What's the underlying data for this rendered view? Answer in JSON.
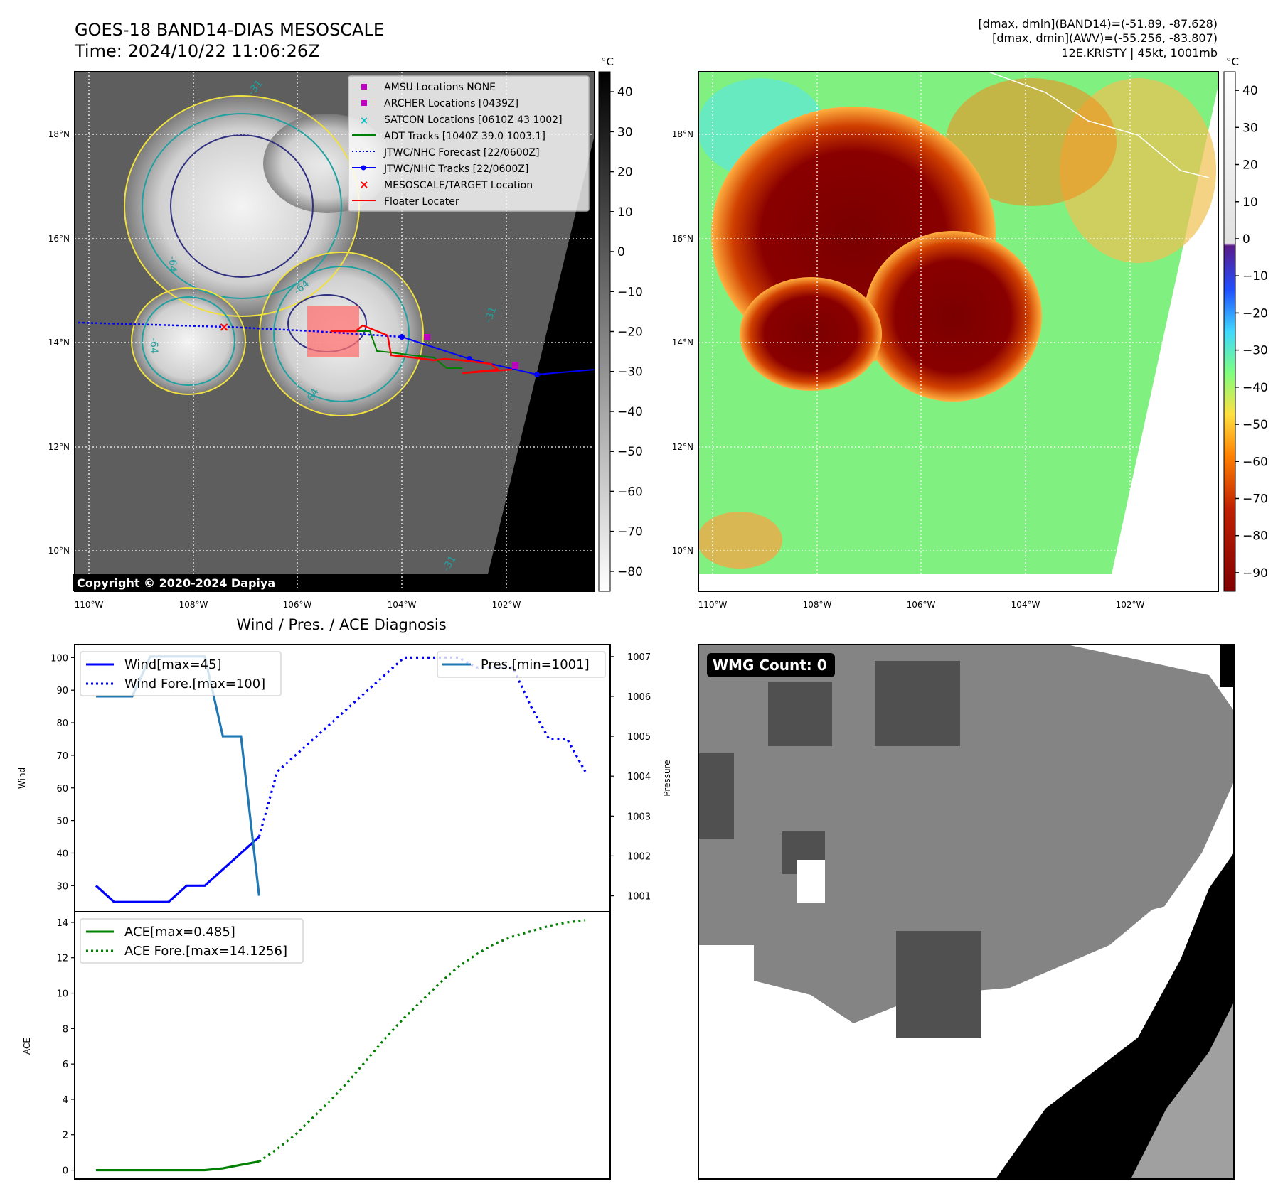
{
  "header": {
    "title_line1": "GOES-18 BAND14-DIAS MESOSCALE",
    "title_line2": "Time: 2024/10/22 11:06:26Z",
    "info_line1": "[dmax, dmin](BAND14)=(-51.89, -87.628)",
    "info_line2": "[dmax, dmin](AWV)=(-55.256, -83.807)",
    "info_line3": "12E.KRISTY | 45kt, 1001mb"
  },
  "copyright": "Copyright © 2020-2024 Dapiya",
  "map": {
    "lon_labels": [
      "110°W",
      "108°W",
      "106°W",
      "104°W",
      "102°W"
    ],
    "lat_labels": [
      "18°N",
      "16°N",
      "14°N",
      "12°N",
      "10°N"
    ],
    "colorbar_unit": "°C",
    "ir_colorbar_ticks": [
      "40",
      "30",
      "20",
      "10",
      "0",
      "−10",
      "−20",
      "−30",
      "−40",
      "−50",
      "−60",
      "−70",
      "−80"
    ],
    "wv_colorbar_ticks": [
      "40",
      "30",
      "20",
      "10",
      "0",
      "−10",
      "−20",
      "−30",
      "−40",
      "−50",
      "−60",
      "−70",
      "−80",
      "−90"
    ],
    "contour_labels": [
      "-31",
      "-64",
      "-64",
      "-64",
      "-31",
      "-31",
      "-64"
    ],
    "legend": [
      {
        "label": "AMSU Locations NONE",
        "color": "#c000c0",
        "marker": "square"
      },
      {
        "label": "ARCHER Locations [0439Z]",
        "color": "#c000c0",
        "marker": "square"
      },
      {
        "label": "SATCON Locations [0610Z 43 1002]",
        "color": "#00c0c0",
        "marker": "x"
      },
      {
        "label": "ADT Tracks [1040Z 39.0 1003.1]",
        "color": "#008000",
        "marker": "line"
      },
      {
        "label": "JTWC/NHC Forecast [22/0600Z]",
        "color": "#0000ff",
        "marker": "dotted"
      },
      {
        "label": "JTWC/NHC Tracks [22/0600Z]",
        "color": "#0000ff",
        "marker": "line-dot"
      },
      {
        "label": "MESOSCALE/TARGET Location",
        "color": "#ff0000",
        "marker": "x"
      },
      {
        "label": "Floater Locater",
        "color": "#ff0000",
        "marker": "line"
      }
    ]
  },
  "wmg": {
    "label": "WMG Count: 0"
  },
  "diagnosis": {
    "title": "Wind / Pres. / ACE Diagnosis",
    "wind_ylabel": "Wind",
    "pres_ylabel": "Pressure",
    "ace_ylabel": "ACE",
    "legend_wind": "Wind[max=45]",
    "legend_wind_fore": "Wind Fore.[max=100]",
    "legend_pres": "Pres.[min=1001]",
    "legend_ace": "ACE[max=0.485]",
    "legend_ace_fore": "ACE Fore.[max=14.1256]"
  },
  "chart_data": [
    {
      "type": "line",
      "title": "Wind / Pres. / ACE Diagnosis",
      "ylabel": "Wind",
      "ylim": [
        22,
        104
      ],
      "y_ticks": [
        30,
        40,
        50,
        60,
        70,
        80,
        90,
        100
      ],
      "series": [
        {
          "name": "Wind[max=45]",
          "axis": "wind",
          "style": "solid",
          "color": "#0000ff",
          "x": [
            0,
            1,
            2,
            3,
            4,
            5,
            6,
            7,
            8,
            9
          ],
          "y": [
            30,
            25,
            25,
            25,
            25,
            30,
            30,
            35,
            40,
            45
          ]
        },
        {
          "name": "Wind Fore.[max=100]",
          "axis": "wind",
          "style": "dotted",
          "color": "#0000ff",
          "x": [
            9,
            10,
            11,
            12,
            13,
            14,
            15,
            16,
            17,
            18,
            19,
            20,
            21,
            22,
            23,
            24,
            25,
            26,
            27
          ],
          "y": [
            45,
            65,
            70,
            75,
            80,
            85,
            90,
            95,
            100,
            100,
            100,
            100,
            97,
            97,
            97,
            85,
            75,
            75,
            65
          ]
        },
        {
          "name": "Pres.[min=1001]",
          "axis": "pressure",
          "style": "solid",
          "color": "#1f77b4",
          "x": [
            0,
            1,
            2,
            3,
            4,
            5,
            6,
            7,
            8,
            9
          ],
          "y": [
            1006,
            1006,
            1006,
            1007,
            1007,
            1007,
            1007,
            1005,
            1005,
            1001
          ]
        }
      ],
      "y2label": "Pressure",
      "y2lim": [
        1000.6,
        1007.3
      ],
      "y2_ticks": [
        1001,
        1002,
        1003,
        1004,
        1005,
        1006,
        1007
      ]
    },
    {
      "type": "line",
      "ylabel": "ACE",
      "ylim": [
        -0.5,
        14.6
      ],
      "y_ticks": [
        0,
        2,
        4,
        6,
        8,
        10,
        12,
        14
      ],
      "series": [
        {
          "name": "ACE[max=0.485]",
          "style": "solid",
          "color": "#008000",
          "x": [
            0,
            1,
            2,
            3,
            4,
            5,
            6,
            7,
            8,
            9
          ],
          "y": [
            0,
            0,
            0,
            0,
            0,
            0,
            0,
            0.1,
            0.3,
            0.485
          ]
        },
        {
          "name": "ACE Fore.[max=14.1256]",
          "style": "dotted",
          "color": "#008000",
          "x": [
            9,
            10,
            11,
            12,
            13,
            14,
            15,
            16,
            17,
            18,
            19,
            20,
            21,
            22,
            23,
            24,
            25,
            26,
            27
          ],
          "y": [
            0.485,
            1.2,
            2.0,
            3.0,
            4.0,
            5.1,
            6.3,
            7.5,
            8.6,
            9.6,
            10.6,
            11.5,
            12.2,
            12.8,
            13.2,
            13.5,
            13.8,
            14.0,
            14.1256
          ]
        }
      ]
    }
  ]
}
